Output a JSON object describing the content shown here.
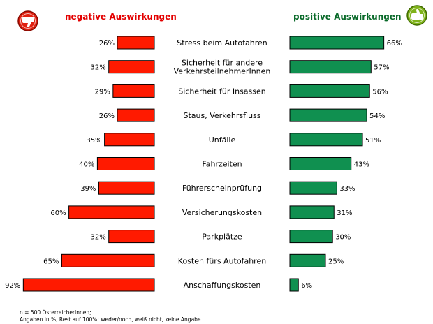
{
  "colors": {
    "negative": "#ff1a00",
    "negative_header": "#e30000",
    "positive": "#109050",
    "positive_header": "#0a6a2a",
    "bar_stroke": "#000000"
  },
  "icons": {
    "negative": "thumbs-down-icon",
    "positive": "thumbs-up-icon"
  },
  "chart_data": {
    "type": "bar",
    "orientation": "horizontal-diverging",
    "headers": {
      "negative": "negative Auswirkungen",
      "positive": "positive Auswirkungen"
    },
    "categories": [
      [
        "Stress beim Autofahren"
      ],
      [
        "Sicherheit für andere",
        "VerkehrsteilnehmerInnen"
      ],
      [
        "Sicherheit für Insassen"
      ],
      [
        "Staus, Verkehrsfluss"
      ],
      [
        "Unfälle"
      ],
      [
        "Fahrzeiten"
      ],
      [
        "Führerscheinprüfung"
      ],
      [
        "Versicherungskosten"
      ],
      [
        "Parkplätze"
      ],
      [
        "Kosten fürs Autofahren"
      ],
      [
        "Anschaffungskosten"
      ]
    ],
    "series": [
      {
        "key": "negative",
        "values": [
          26,
          32,
          29,
          26,
          35,
          40,
          39,
          60,
          32,
          65,
          92
        ]
      },
      {
        "key": "positive",
        "values": [
          66,
          57,
          56,
          54,
          51,
          43,
          33,
          31,
          30,
          25,
          6
        ]
      }
    ],
    "value_suffix": "%",
    "xlim": [
      0,
      100
    ]
  },
  "footnote": {
    "line1": "n = 500 ÖsterreicherInnen;",
    "line2": "Angaben in %, Rest auf 100%: weder/noch, weiß nicht, keine Angabe"
  }
}
